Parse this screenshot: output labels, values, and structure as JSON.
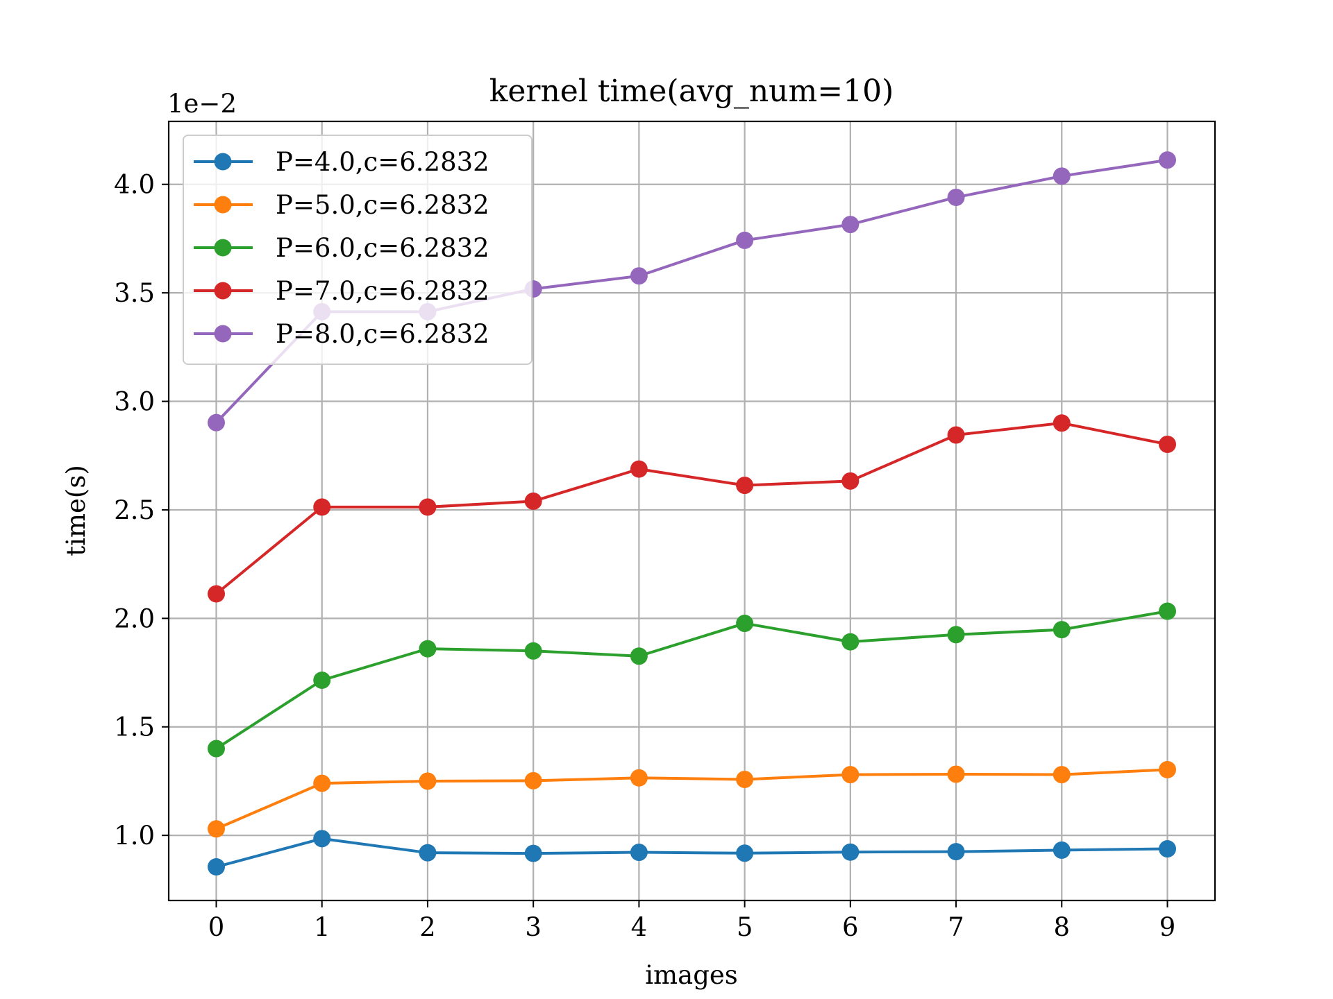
{
  "chart_data": {
    "type": "line",
    "title": "kernel time(avg_num=10)",
    "xlabel": "images",
    "ylabel": "time(s)",
    "y_offset_label": "1e−2",
    "x": [
      0,
      1,
      2,
      3,
      4,
      5,
      6,
      7,
      8,
      9
    ],
    "x_ticks": [
      "0",
      "1",
      "2",
      "3",
      "4",
      "5",
      "6",
      "7",
      "8",
      "9"
    ],
    "xlim": [
      -0.45,
      9.45
    ],
    "ylim": [
      0.007,
      0.0429
    ],
    "y_ticks": [
      0.01,
      0.015,
      0.02,
      0.025,
      0.03,
      0.035,
      0.04
    ],
    "y_tick_labels": [
      "1.0",
      "1.5",
      "2.0",
      "2.5",
      "3.0",
      "3.5",
      "4.0"
    ],
    "grid": true,
    "legend_position": "top-left",
    "series": [
      {
        "name": "P=4.0,c=6.2832",
        "color": "#1f77b4",
        "values": [
          0.00855,
          0.00985,
          0.0092,
          0.00917,
          0.00922,
          0.00918,
          0.00923,
          0.00925,
          0.00932,
          0.00938
        ]
      },
      {
        "name": "P=5.0,c=6.2832",
        "color": "#ff7f0e",
        "values": [
          0.0103,
          0.0124,
          0.0125,
          0.01252,
          0.01265,
          0.01258,
          0.0128,
          0.01282,
          0.0128,
          0.01303
        ]
      },
      {
        "name": "P=6.0,c=6.2832",
        "color": "#2ca02c",
        "values": [
          0.014,
          0.01715,
          0.0186,
          0.0185,
          0.01826,
          0.01977,
          0.01892,
          0.01925,
          0.01948,
          0.02033
        ]
      },
      {
        "name": "P=7.0,c=6.2832",
        "color": "#d62728",
        "values": [
          0.02113,
          0.02513,
          0.02513,
          0.0254,
          0.02688,
          0.02613,
          0.02633,
          0.02845,
          0.029,
          0.02802
        ]
      },
      {
        "name": "P=8.0,c=6.2832",
        "color": "#9467bd",
        "values": [
          0.02902,
          0.03413,
          0.03413,
          0.03518,
          0.03578,
          0.03742,
          0.03815,
          0.0394,
          0.04038,
          0.04112
        ]
      }
    ]
  }
}
